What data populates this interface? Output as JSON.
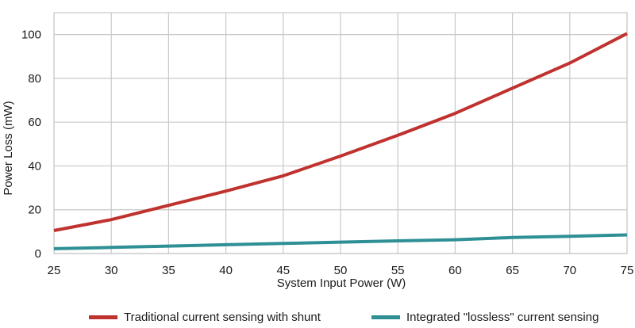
{
  "chart_data": {
    "type": "line",
    "title": "",
    "xlabel": "System Input Power (W)",
    "ylabel": "Power Loss (mW)",
    "xlim": [
      25,
      75
    ],
    "ylim": [
      0,
      110
    ],
    "x_ticks": [
      25,
      30,
      35,
      40,
      45,
      50,
      55,
      60,
      65,
      70,
      75
    ],
    "y_ticks": [
      0,
      20,
      40,
      60,
      80,
      100
    ],
    "grid": true,
    "legend_position": "bottom",
    "x": [
      25,
      30,
      35,
      40,
      45,
      50,
      55,
      60,
      65,
      70,
      75
    ],
    "series": [
      {
        "name": "Traditional current sensing with shunt",
        "color": "#c0322f",
        "values": [
          10.5,
          15.5,
          22,
          28.5,
          35.5,
          44.5,
          54,
          64,
          75.5,
          87,
          100.5
        ]
      },
      {
        "name": "Integrated \"lossless\" current sensing",
        "color": "#2e8f94",
        "values": [
          2.2,
          2.8,
          3.4,
          4,
          4.6,
          5.2,
          5.8,
          6.3,
          7.3,
          7.9,
          8.5
        ]
      }
    ]
  }
}
